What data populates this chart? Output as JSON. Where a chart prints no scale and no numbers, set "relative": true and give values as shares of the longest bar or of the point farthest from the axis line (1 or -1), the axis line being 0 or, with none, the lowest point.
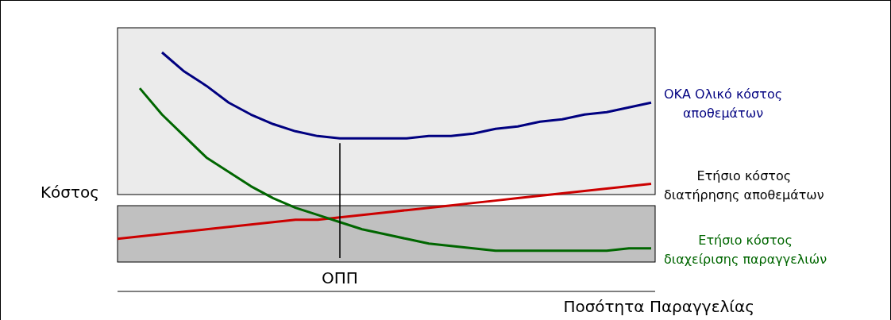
{
  "chart_data": {
    "type": "line",
    "relative": true,
    "xlabel": "Ποσότητα Παραγγελίας",
    "ylabel": "Κόστος",
    "categories": [
      null,
      null,
      null,
      null,
      null,
      null,
      null,
      null,
      null,
      null,
      null,
      null,
      null,
      null,
      null,
      null,
      null,
      null,
      null,
      null,
      null,
      null,
      null,
      null,
      null
    ],
    "annotations": [
      "ΟΠΠ"
    ],
    "series": [
      {
        "name": "ΟΚΑ Ολικό κόστος αποθεμάτων",
        "color": "#000080",
        "values": [
          null,
          null,
          1.0,
          0.92,
          0.86,
          0.79,
          0.74,
          0.7,
          0.67,
          0.65,
          0.64,
          0.64,
          0.64,
          0.64,
          0.65,
          0.65,
          0.66,
          0.68,
          0.69,
          0.71,
          0.72,
          0.74,
          0.75,
          0.77,
          0.79
        ]
      },
      {
        "name": "Ετήσιο κόστος διατήρησης αποθεμάτων",
        "color": "#cc0000",
        "values": [
          0.22,
          0.23,
          0.24,
          0.25,
          0.26,
          0.27,
          0.28,
          0.29,
          0.3,
          0.3,
          0.31,
          0.32,
          0.33,
          0.34,
          0.35,
          0.36,
          0.37,
          0.38,
          0.39,
          0.4,
          0.41,
          0.42,
          0.43,
          0.44,
          0.45
        ]
      },
      {
        "name": "Ετήσιο κόστος διαχείρισης παραγγελιών",
        "color": "#006600",
        "values": [
          null,
          0.85,
          0.74,
          0.65,
          0.56,
          0.5,
          0.44,
          0.39,
          0.35,
          0.32,
          0.29,
          0.26,
          0.24,
          0.22,
          0.2,
          0.19,
          0.18,
          0.17,
          0.17,
          0.17,
          0.17,
          0.17,
          0.17,
          0.18,
          0.18
        ]
      }
    ],
    "marker": "none",
    "line_style": "solid"
  }
}
